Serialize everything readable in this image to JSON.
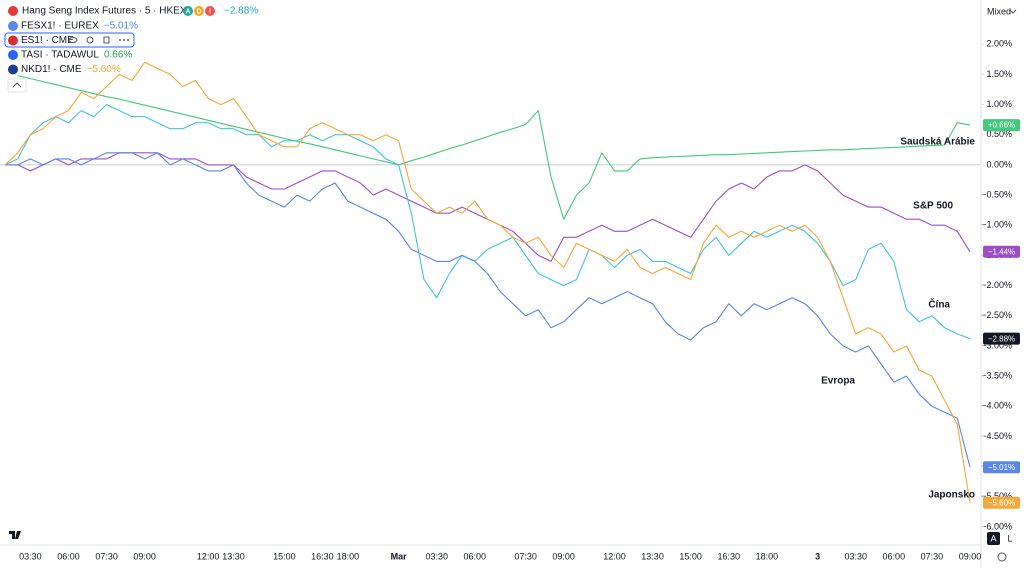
{
  "header": {
    "title": "Hang Seng Index Futures · 5 · HKEX",
    "badges": [
      "A",
      "D",
      "!"
    ],
    "change": "−2.88%"
  },
  "legend_rows": [
    {
      "symbol": "FESX1! · EUREX",
      "change": "−5.01%",
      "color": "#5b86e5"
    },
    {
      "symbol": "ES1! · CME",
      "change": null,
      "color": "#d32f2f"
    },
    {
      "symbol": "TASI · TADAWUL",
      "change": "0.66%",
      "color": "#2962ff"
    },
    {
      "symbol": "NKD1! · CME",
      "change": "−5.60%",
      "color": "#1e3a8a"
    }
  ],
  "toolbar": {
    "mode": "Mixed",
    "buttons": [
      "A",
      "L"
    ]
  },
  "chart_data": {
    "type": "line",
    "categories": [
      null,
      null,
      "03:30",
      null,
      null,
      "06:00",
      null,
      null,
      "07:30",
      null,
      null,
      "09:00",
      null,
      null,
      null,
      null,
      "12:00",
      null,
      "13:30",
      null,
      null,
      null,
      "15:00",
      null,
      null,
      "16:30",
      null,
      "18:00",
      null,
      null,
      null,
      "Mar",
      null,
      null,
      "03:30",
      null,
      null,
      "06:00",
      null,
      null,
      null,
      "07:30",
      null,
      null,
      "09:00",
      null,
      null,
      null,
      "12:00",
      null,
      null,
      "13:30",
      null,
      null,
      "15:00",
      null,
      null,
      "16:30",
      null,
      null,
      "18:00",
      null,
      null,
      null,
      "3",
      null,
      null,
      "03:30",
      null,
      null,
      "06:00",
      null,
      null,
      "07:30",
      null,
      null,
      "09:00"
    ],
    "ylim": [
      -6.2,
      2.7
    ],
    "yticks": [
      {
        "value": 2,
        "label": "2.00%"
      },
      {
        "value": 1.5,
        "label": "1.50%"
      },
      {
        "value": 1,
        "label": "1.00%"
      },
      {
        "value": 0.5,
        "label": "0.50%"
      },
      {
        "value": 0,
        "label": "0.00%"
      },
      {
        "value": -0.5,
        "label": "−0.50%"
      },
      {
        "value": -1,
        "label": "−1.00%"
      },
      {
        "value": -1.5,
        "label": "−1.50%"
      },
      {
        "value": -2,
        "label": "−2.00%"
      },
      {
        "value": -2.5,
        "label": "−2.50%"
      },
      {
        "value": -3,
        "label": "−3.00%"
      },
      {
        "value": -3.5,
        "label": "−3.50%"
      },
      {
        "value": -4,
        "label": "−4.00%"
      },
      {
        "value": -4.5,
        "label": "−4.50%"
      },
      {
        "value": -5,
        "label": "−5.00%"
      },
      {
        "value": -5.5,
        "label": "−5.50%"
      },
      {
        "value": -6,
        "label": "−6.00%"
      }
    ],
    "grid": false,
    "series": [
      {
        "name": "Saudská Arábie",
        "color": "#42c87a",
        "end_label": "+0.66%",
        "values": [
          null,
          1.48,
          1.43,
          1.38,
          1.33,
          1.28,
          1.23,
          1.18,
          1.13,
          1.09,
          1.04,
          0.99,
          0.94,
          0.89,
          0.84,
          0.79,
          0.74,
          0.69,
          0.64,
          0.59,
          0.54,
          0.49,
          0.44,
          0.39,
          0.35,
          0.3,
          0.25,
          0.2,
          0.15,
          0.1,
          0.05,
          0.0,
          0.07,
          0.13,
          0.2,
          0.27,
          0.33,
          0.4,
          0.47,
          0.54,
          0.6,
          0.67,
          0.9,
          -0.2,
          -0.9,
          -0.5,
          -0.3,
          0.2,
          -0.1,
          -0.1,
          0.1,
          0.12,
          0.13,
          0.14,
          0.15,
          0.16,
          0.17,
          0.17,
          0.18,
          0.19,
          0.2,
          0.21,
          0.22,
          0.23,
          0.24,
          0.25,
          0.25,
          0.26,
          0.27,
          0.28,
          0.29,
          0.3,
          0.31,
          0.32,
          0.33,
          0.7,
          0.66
        ]
      },
      {
        "name": "S&P 500",
        "color": "#9c4fc5",
        "end_label": "−1.44%",
        "values": [
          0,
          0.0,
          -0.1,
          0.0,
          0.1,
          0.0,
          0.1,
          0.1,
          0.1,
          0.2,
          0.2,
          0.2,
          0.2,
          0.1,
          0.1,
          0.1,
          0.0,
          0.0,
          0.0,
          -0.2,
          -0.3,
          -0.4,
          -0.4,
          -0.3,
          -0.2,
          -0.1,
          -0.1,
          -0.2,
          -0.3,
          -0.5,
          -0.4,
          -0.5,
          -0.6,
          -0.7,
          -0.8,
          -0.8,
          -0.7,
          -0.8,
          -0.9,
          -1.0,
          -1.1,
          -1.3,
          -1.5,
          -1.6,
          -1.2,
          -1.2,
          -1.1,
          -1.0,
          -1.1,
          -1.1,
          -1.0,
          -0.9,
          -1.0,
          -1.1,
          -1.2,
          -0.9,
          -0.6,
          -0.4,
          -0.3,
          -0.4,
          -0.2,
          -0.1,
          -0.1,
          0.0,
          -0.1,
          -0.3,
          -0.5,
          -0.6,
          -0.7,
          -0.7,
          -0.8,
          -0.9,
          -0.9,
          -1.0,
          -1.0,
          -1.1,
          -1.44
        ]
      },
      {
        "name": "Čína",
        "color": "#45c4d6",
        "end_label": "−2.88%",
        "label_color": "#131722",
        "values": [
          0,
          0.1,
          0.5,
          0.7,
          0.8,
          0.7,
          0.9,
          0.8,
          1.0,
          0.9,
          0.8,
          0.8,
          0.7,
          0.6,
          0.6,
          0.7,
          0.7,
          0.6,
          0.6,
          0.5,
          0.5,
          0.3,
          0.4,
          0.4,
          0.5,
          0.4,
          0.5,
          0.5,
          0.4,
          0.3,
          0.1,
          0.0,
          -0.8,
          -1.9,
          -2.2,
          -1.8,
          -1.5,
          -1.6,
          -1.4,
          -1.3,
          -1.2,
          -1.5,
          -1.8,
          -1.9,
          -2.0,
          -1.9,
          -1.4,
          -1.5,
          -1.7,
          -1.5,
          -1.4,
          -1.6,
          -1.6,
          -1.7,
          -1.8,
          -1.4,
          -1.2,
          -1.5,
          -1.3,
          -1.1,
          -1.2,
          -1.1,
          -1.0,
          -1.1,
          -1.3,
          -1.6,
          -2.0,
          -1.9,
          -1.4,
          -1.3,
          -1.6,
          -2.4,
          -2.6,
          -2.5,
          -2.7,
          -2.8,
          -2.88
        ]
      },
      {
        "name": "Evropa",
        "color": "#5b86e5",
        "end_label": "−5.01%",
        "values": [
          0,
          0.0,
          0.1,
          0.0,
          0.1,
          0.1,
          0.0,
          0.1,
          0.2,
          0.2,
          0.2,
          0.1,
          0.2,
          0.0,
          0.1,
          0.0,
          -0.1,
          -0.1,
          0.0,
          -0.3,
          -0.5,
          -0.6,
          -0.7,
          -0.5,
          -0.6,
          -0.4,
          -0.3,
          -0.6,
          -0.7,
          -0.8,
          -0.9,
          -1.1,
          -1.4,
          -1.5,
          -1.6,
          -1.6,
          -1.5,
          -1.6,
          -1.8,
          -2.1,
          -2.3,
          -2.5,
          -2.4,
          -2.7,
          -2.6,
          -2.4,
          -2.2,
          -2.3,
          -2.2,
          -2.1,
          -2.2,
          -2.3,
          -2.6,
          -2.8,
          -2.9,
          -2.7,
          -2.6,
          -2.3,
          -2.5,
          -2.3,
          -2.4,
          -2.3,
          -2.2,
          -2.3,
          -2.5,
          -2.8,
          -3.0,
          -3.1,
          -3.0,
          -3.3,
          -3.6,
          -3.5,
          -3.8,
          -4.0,
          -4.1,
          -4.2,
          -5.01
        ]
      },
      {
        "name": "Japonsko",
        "color": "#f5a83a",
        "end_label": "−5.60%",
        "values": [
          0,
          0.2,
          0.5,
          0.6,
          0.8,
          0.9,
          1.2,
          1.1,
          1.3,
          1.5,
          1.4,
          1.7,
          1.6,
          1.5,
          1.3,
          1.4,
          1.1,
          1.0,
          1.1,
          0.8,
          0.5,
          0.4,
          0.3,
          0.3,
          0.6,
          0.7,
          0.6,
          0.5,
          0.5,
          0.4,
          0.5,
          0.4,
          -0.4,
          -0.6,
          -0.8,
          -0.7,
          -0.8,
          -0.6,
          -0.9,
          -1.0,
          -1.2,
          -1.3,
          -1.2,
          -1.5,
          -1.7,
          -1.3,
          -1.4,
          -1.5,
          -1.6,
          -1.4,
          -1.7,
          -1.8,
          -1.7,
          -1.8,
          -1.9,
          -1.3,
          -1.0,
          -1.2,
          -1.1,
          -1.2,
          -1.1,
          -1.0,
          -1.1,
          -1.0,
          -1.2,
          -1.6,
          -2.2,
          -2.8,
          -2.7,
          -2.8,
          -3.1,
          -3.0,
          -3.4,
          -3.5,
          -3.9,
          -4.3,
          -5.6
        ]
      }
    ]
  }
}
